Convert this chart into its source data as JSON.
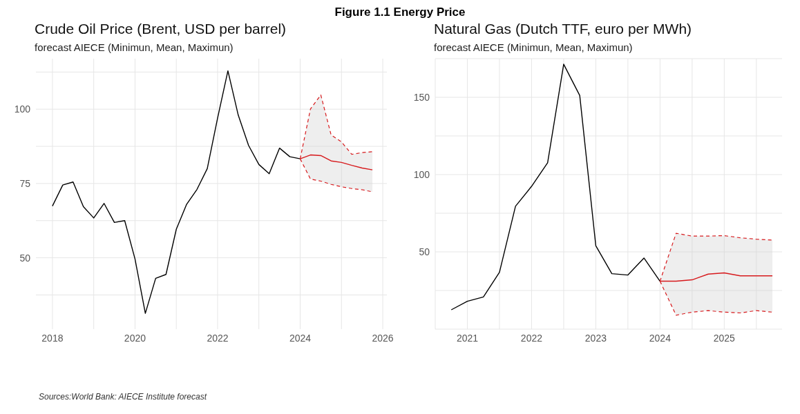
{
  "chart_data": [
    {
      "type": "line",
      "title": "Crude Oil Price (Brent, USD per barrel)",
      "subtitle": "forecast AIECE (Minimun, Mean, Maximun)",
      "annotations": [
        "Figure 1.1 Energy Price",
        "Sources:World Bank: AIECE Institute forecast"
      ],
      "grid": true,
      "xlim": [
        2017.6,
        2026.1
      ],
      "xticks": [
        2018,
        2020,
        2022,
        2024,
        2026
      ],
      "ylim": [
        26,
        117
      ],
      "yticks": [
        50,
        75,
        100
      ],
      "series": [
        {
          "color": "#000000",
          "x": [
            2018,
            2018.25,
            2018.5,
            2018.75,
            2019,
            2019.25,
            2019.5,
            2019.75,
            2020,
            2020.25,
            2020.5,
            2020.75,
            2021,
            2021.25,
            2021.5,
            2021.75,
            2022,
            2022.25,
            2022.5,
            2022.75,
            2023,
            2023.25,
            2023.5,
            2023.75,
            2024
          ],
          "values": [
            67.4,
            74.5,
            75.5,
            67.2,
            63.4,
            68.3,
            61.9,
            62.5,
            49.6,
            31.3,
            43.1,
            44.4,
            59.6,
            68,
            73,
            80,
            97,
            112.9,
            98,
            87.8,
            81.4,
            78.3,
            86.9,
            84,
            83.3
          ]
        },
        {
          "color": "#d7191c",
          "x": [
            2024,
            2024.25,
            2024.5,
            2024.75,
            2025,
            2025.25,
            2025.5,
            2025.75
          ],
          "values": [
            83.3,
            84.6,
            84.4,
            82.6,
            82.1,
            81.1,
            80.2,
            79.6
          ],
          "lower": [
            83.3,
            76.5,
            75.8,
            74.7,
            73.9,
            73.3,
            72.9,
            72.2
          ],
          "upper": [
            83.3,
            100.1,
            104.8,
            91.3,
            89,
            84.8,
            85.4,
            85.7
          ]
        },
        {
          "color": "#d7191c",
          "line_style": "dashed",
          "x": [
            2024,
            2024.25,
            2024.5,
            2024.75,
            2025,
            2025.25,
            2025.5,
            2025.75
          ],
          "values": [
            83.3,
            76.5,
            75.8,
            74.7,
            73.9,
            73.3,
            72.9,
            72.2
          ]
        },
        {
          "color": "#d7191c",
          "line_style": "dashed",
          "x": [
            2024,
            2024.25,
            2024.5,
            2024.75,
            2025,
            2025.25,
            2025.5,
            2025.75
          ],
          "values": [
            83.3,
            100.1,
            104.8,
            91.3,
            89,
            84.8,
            85.4,
            85.7
          ]
        }
      ]
    },
    {
      "type": "line",
      "title": "Natural Gas (Dutch TTF, euro per MWh)",
      "subtitle": "forecast AIECE (Minimun, Mean, Maximun)",
      "grid": true,
      "xlim": [
        2020.5,
        2025.9
      ],
      "xticks": [
        2021,
        2022,
        2023,
        2024,
        2025
      ],
      "ylim": [
        0,
        175
      ],
      "yticks": [
        50,
        100,
        150
      ],
      "series": [
        {
          "color": "#000000",
          "x": [
            2020.75,
            2021,
            2021.25,
            2021.5,
            2021.75,
            2022,
            2022.25,
            2022.5,
            2022.75,
            2023,
            2023.25,
            2023.5,
            2023.75,
            2024
          ],
          "values": [
            12.5,
            18,
            20.8,
            36.8,
            79.5,
            92.4,
            107.6,
            171.4,
            151.2,
            54,
            35.9,
            35,
            46,
            31
          ]
        },
        {
          "color": "#d7191c",
          "x": [
            2024,
            2024.25,
            2024.5,
            2024.75,
            2025,
            2025.25,
            2025.5,
            2025.75
          ],
          "values": [
            31,
            31,
            31.9,
            35.6,
            36.4,
            34.5,
            34.5,
            34.5
          ],
          "lower": [
            31,
            9,
            11,
            12,
            11,
            10.5,
            12,
            11
          ],
          "upper": [
            31,
            62,
            60.2,
            60.2,
            60.5,
            59.1,
            58.2,
            57.6
          ]
        },
        {
          "color": "#d7191c",
          "line_style": "dashed",
          "x": [
            2024,
            2024.25,
            2024.5,
            2024.75,
            2025,
            2025.25,
            2025.5,
            2025.75
          ],
          "values": [
            31,
            9,
            11,
            12,
            11,
            10.5,
            12,
            11
          ]
        },
        {
          "color": "#d7191c",
          "line_style": "dashed",
          "x": [
            2024,
            2024.25,
            2024.5,
            2024.75,
            2025,
            2025.25,
            2025.5,
            2025.75
          ],
          "values": [
            31,
            62,
            60.2,
            60.2,
            60.5,
            59.1,
            58.2,
            57.6
          ]
        }
      ]
    }
  ]
}
